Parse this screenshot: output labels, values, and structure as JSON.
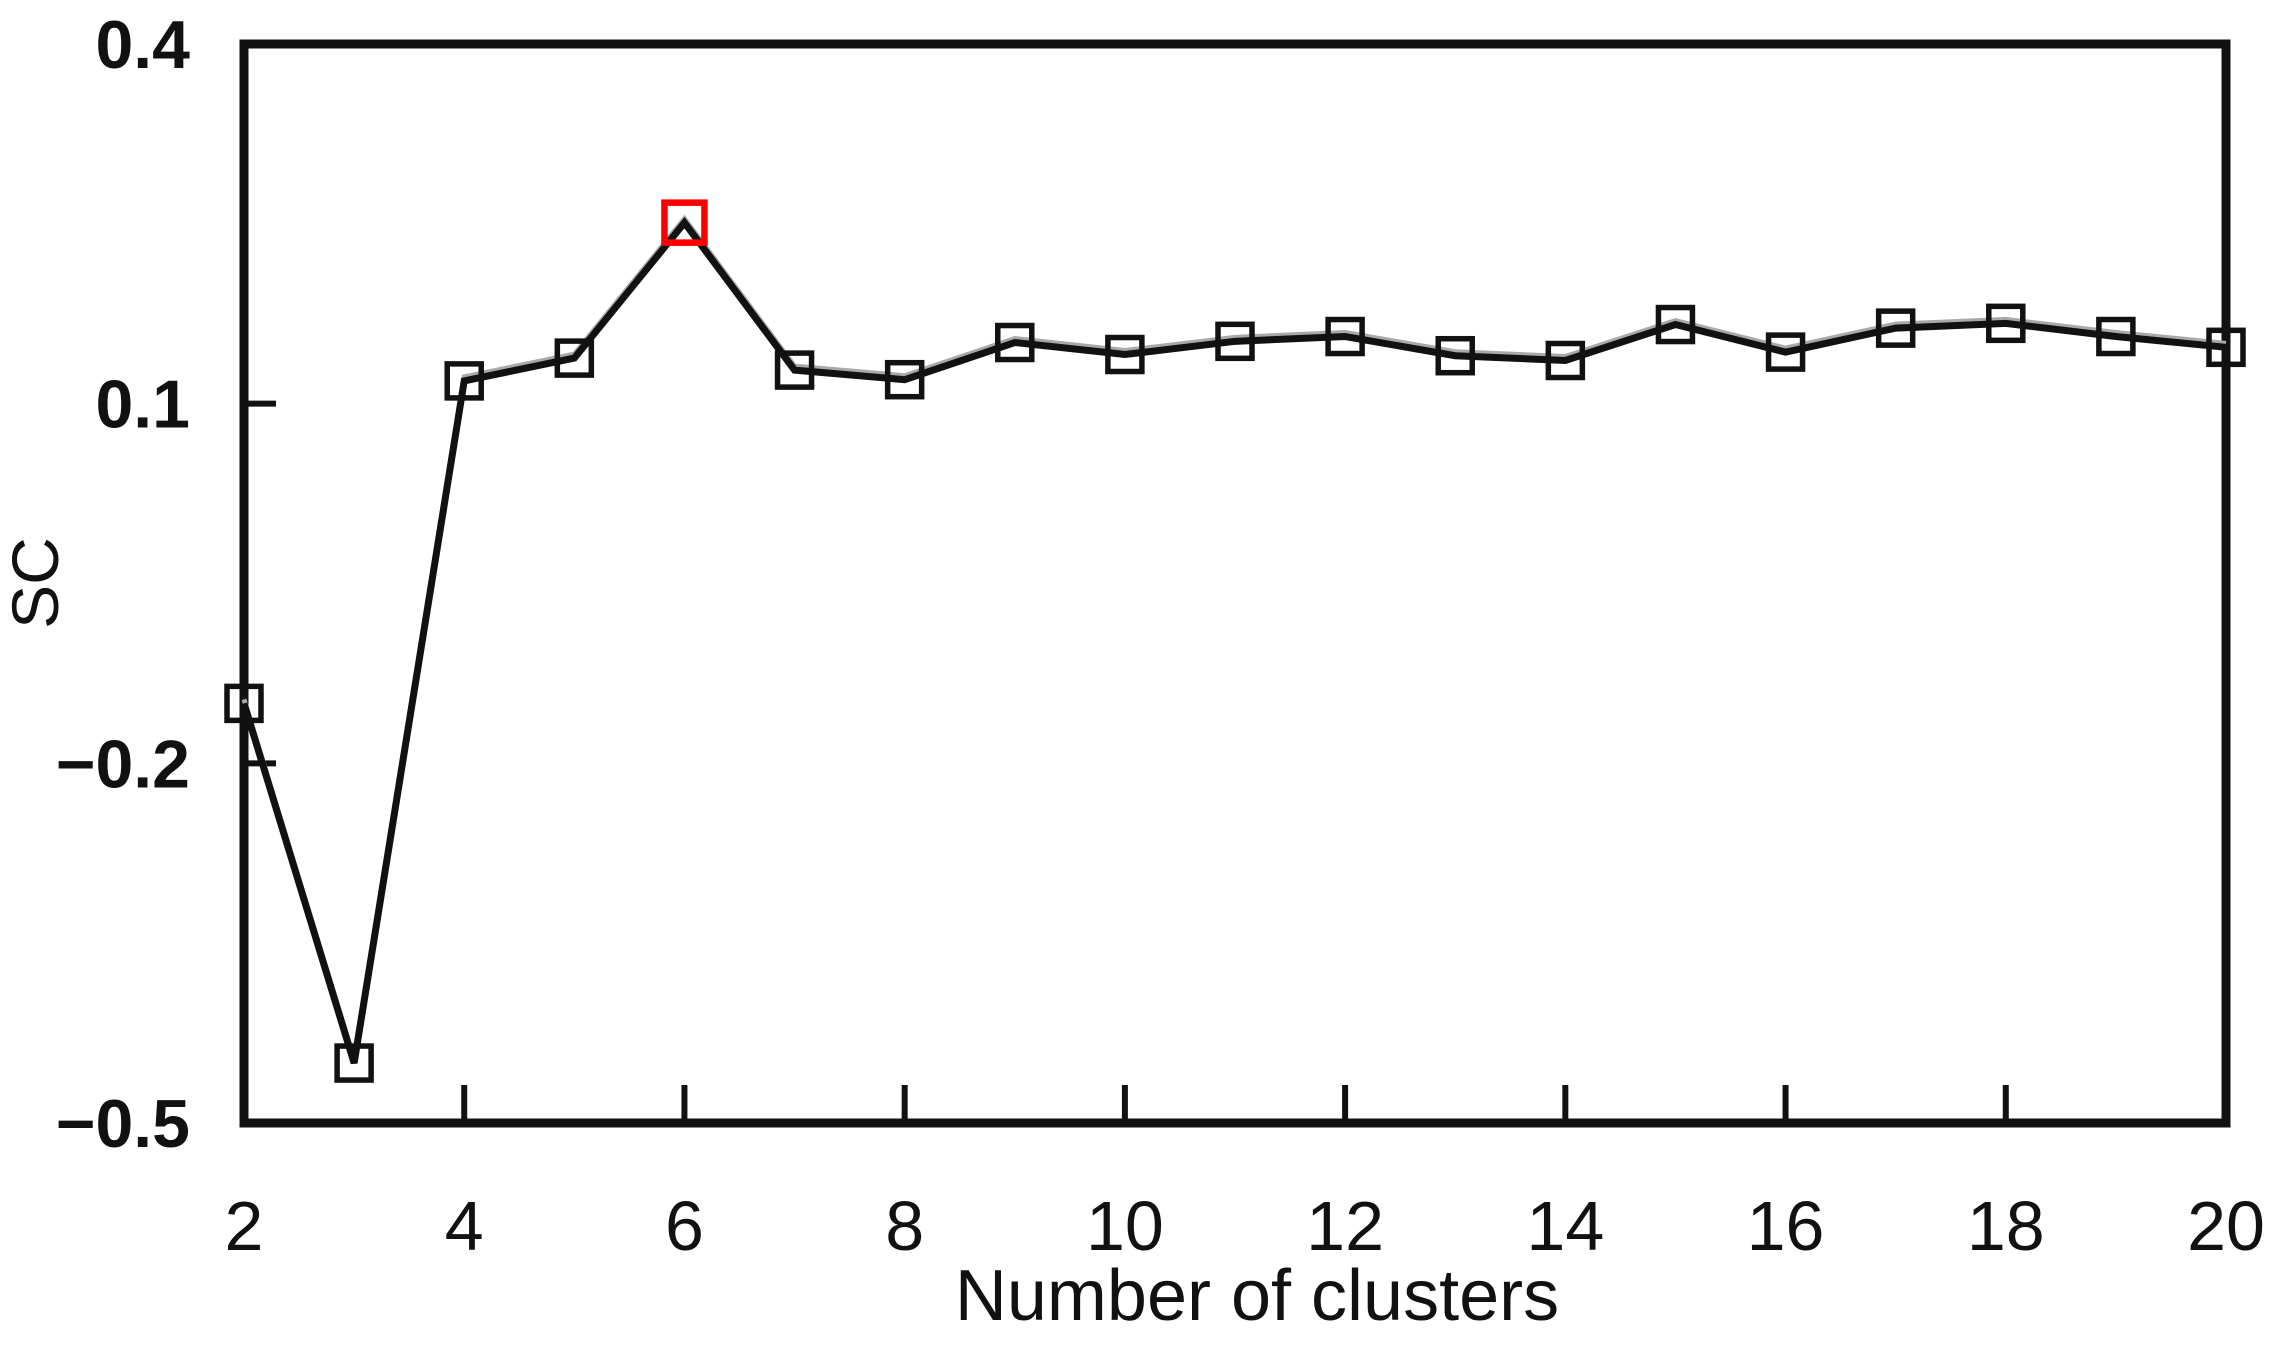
{
  "figure": {
    "background": "#ffffff"
  },
  "chart_data": {
    "type": "line",
    "title": "",
    "xlabel": "Number of clusters",
    "ylabel": "SC",
    "x": [
      2,
      3,
      4,
      5,
      6,
      7,
      8,
      9,
      10,
      11,
      12,
      13,
      14,
      15,
      16,
      17,
      18,
      19,
      20
    ],
    "series": [
      {
        "name": "SC",
        "values": [
          -0.15,
          -0.45,
          0.119,
          0.138,
          0.251,
          0.128,
          0.12,
          0.151,
          0.141,
          0.152,
          0.156,
          0.14,
          0.136,
          0.166,
          0.143,
          0.163,
          0.167,
          0.156,
          0.147
        ]
      }
    ],
    "xlim": [
      2,
      20
    ],
    "ylim": [
      -0.5,
      0.4
    ],
    "x_ticks": [
      2,
      4,
      6,
      8,
      10,
      12,
      14,
      16,
      18,
      20
    ],
    "y_ticks": [
      0.4,
      0.1,
      -0.2,
      -0.5
    ],
    "y_tick_labels": [
      "0.4",
      "0.1",
      "−0.2",
      "−0.5"
    ],
    "grid": false,
    "legend": false,
    "marker": "open-square",
    "highlight": {
      "x": 6,
      "value": 0.251
    },
    "colors": {
      "line": "#111111",
      "line_shadow": "#a9a9a9",
      "marker": "#111111",
      "highlight": "#f80100",
      "axis": "#111111",
      "text": "#111111"
    }
  }
}
